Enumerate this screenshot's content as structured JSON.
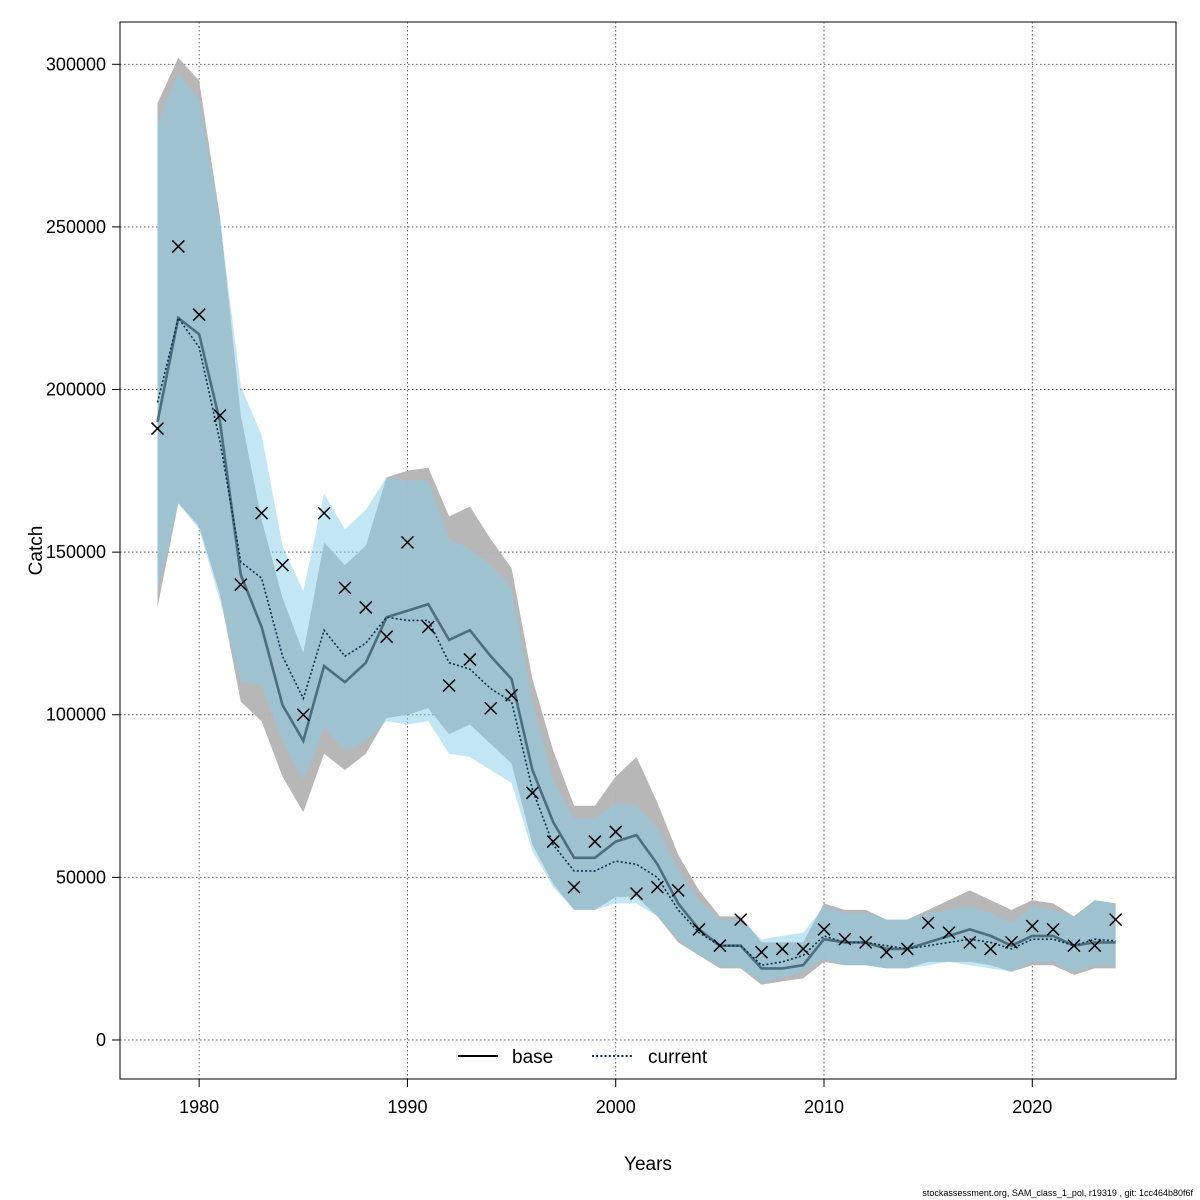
{
  "chart_data": {
    "type": "line",
    "xlabel": "Years",
    "ylabel": "Catch",
    "xlim": [
      1976.2,
      1926.9
    ],
    "ylim": [
      -12000,
      313000
    ],
    "x_ticks": [
      1980,
      1990,
      2000,
      2010,
      2020
    ],
    "y_ticks": [
      0,
      50000,
      100000,
      150000,
      200000,
      250000,
      300000
    ],
    "x_tick_labels": [
      "1980",
      "1990",
      "2000",
      "2010",
      "2020"
    ],
    "y_tick_labels": [
      "0",
      "50000",
      "100000",
      "150000",
      "200000",
      "250000",
      "300000"
    ],
    "grid": true,
    "legend_position": "bottom",
    "colors": {
      "base_band": "#b3b3b3",
      "current_band": "#87ceeb",
      "base_line": "#3d5f6e",
      "current_line": "#00334d",
      "observed": "#000000"
    },
    "x": [
      1978,
      1979,
      1980,
      1981,
      1982,
      1983,
      1984,
      1985,
      1986,
      1987,
      1988,
      1989,
      1990,
      1991,
      1992,
      1993,
      1994,
      1995,
      1996,
      1997,
      1998,
      1999,
      2000,
      2001,
      2002,
      2003,
      2004,
      2005,
      2006,
      2007,
      2008,
      2009,
      2010,
      2011,
      2012,
      2013,
      2014,
      2015,
      2016,
      2017,
      2018,
      2019,
      2020,
      2021,
      2022,
      2023,
      2024
    ],
    "series": [
      {
        "name": "base",
        "line": "solid",
        "values": [
          190000,
          222000,
          217000,
          190000,
          143000,
          127000,
          103000,
          92000,
          115000,
          110000,
          116000,
          130000,
          132000,
          134000,
          123000,
          126000,
          118000,
          111000,
          83000,
          67000,
          56000,
          56000,
          61000,
          63000,
          54000,
          42000,
          34000,
          29000,
          29000,
          22000,
          22000,
          23000,
          31000,
          30000,
          30000,
          28000,
          28000,
          30000,
          32000,
          34000,
          32000,
          29000,
          32000,
          32000,
          29000,
          30000,
          30000
        ],
        "lower": [
          133000,
          165000,
          158000,
          137000,
          104000,
          98000,
          81000,
          70000,
          88000,
          83000,
          88000,
          99000,
          100000,
          102000,
          94000,
          97000,
          91000,
          85000,
          60000,
          48000,
          40000,
          40000,
          44000,
          44000,
          38000,
          30000,
          26000,
          22000,
          22000,
          17000,
          18000,
          19000,
          24000,
          23000,
          23000,
          22000,
          22000,
          24000,
          24000,
          24000,
          23000,
          21000,
          23000,
          23000,
          20000,
          22000,
          22000
        ],
        "upper": [
          288000,
          302000,
          295000,
          253000,
          192000,
          160000,
          136000,
          119000,
          153000,
          146000,
          152000,
          173000,
          175000,
          176000,
          161000,
          164000,
          154000,
          145000,
          111000,
          89000,
          72000,
          72000,
          81000,
          87000,
          73000,
          57000,
          46000,
          38000,
          38000,
          30000,
          30000,
          30000,
          42000,
          40000,
          40000,
          37000,
          37000,
          40000,
          43000,
          46000,
          43000,
          40000,
          43000,
          42000,
          38000,
          43000,
          42000
        ]
      },
      {
        "name": "current",
        "line": "dotted",
        "values": [
          196000,
          222000,
          213000,
          184000,
          147000,
          142000,
          118000,
          105000,
          126000,
          118000,
          122000,
          130000,
          129000,
          129000,
          116000,
          114000,
          108000,
          104000,
          77000,
          60000,
          52000,
          52000,
          55000,
          54000,
          50000,
          40000,
          33000,
          29000,
          29000,
          23000,
          24000,
          26000,
          32000,
          30000,
          30000,
          29000,
          28000,
          29000,
          30000,
          31000,
          30000,
          28000,
          31000,
          31000,
          29000,
          31000,
          30500
        ],
        "lower": [
          138000,
          165000,
          157000,
          135000,
          110000,
          109000,
          92000,
          80000,
          96000,
          89000,
          92000,
          98000,
          97000,
          98000,
          88000,
          87000,
          83000,
          79000,
          58000,
          47000,
          40000,
          40000,
          42000,
          42000,
          38000,
          31000,
          26000,
          23000,
          22000,
          18000,
          19000,
          21000,
          25000,
          23000,
          23000,
          22000,
          22000,
          23000,
          24000,
          23000,
          22000,
          21000,
          24000,
          24000,
          21000,
          23000,
          23000
        ],
        "upper": [
          282000,
          297000,
          289000,
          252000,
          201000,
          186000,
          152000,
          138000,
          168000,
          157000,
          163000,
          173000,
          172000,
          172000,
          154000,
          151000,
          146000,
          139000,
          104000,
          80000,
          68000,
          68000,
          73000,
          72000,
          65000,
          52000,
          43000,
          37000,
          37000,
          31000,
          32000,
          33000,
          41000,
          39000,
          39000,
          37000,
          37000,
          39000,
          40000,
          41000,
          39000,
          36000,
          41000,
          40000,
          38000,
          43000,
          42000
        ]
      }
    ],
    "observed": {
      "marker": "x",
      "values": [
        188000,
        244000,
        223000,
        192000,
        140000,
        162000,
        146000,
        100000,
        162000,
        139000,
        133000,
        124000,
        153000,
        127000,
        109000,
        117000,
        102000,
        106000,
        76000,
        61000,
        47000,
        61000,
        64000,
        45000,
        47000,
        46000,
        34000,
        29000,
        37000,
        27000,
        28000,
        28000,
        34000,
        31000,
        30000,
        27000,
        28000,
        36000,
        33000,
        30000,
        28000,
        30000,
        35000,
        34000,
        29000,
        29000,
        37000
      ]
    }
  },
  "footer": "stockassessment.org, SAM_class_1_pol, r19319 , git: 1cc464b80f6f"
}
